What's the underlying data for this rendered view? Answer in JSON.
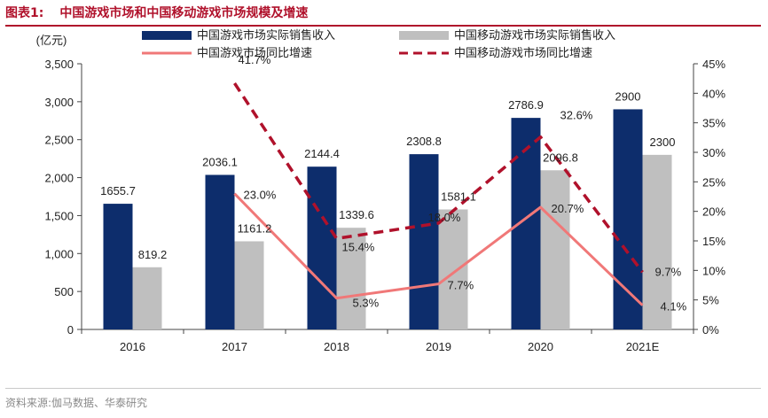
{
  "figure": {
    "label": "图表1:",
    "title": "中国游戏市场和中国移动游戏市场规模及增速",
    "source": "资料来源:伽马数据、华泰研究"
  },
  "chart_data": {
    "type": "bar",
    "categories": [
      "2016",
      "2017",
      "2018",
      "2019",
      "2020",
      "2021E"
    ],
    "ylabel": "(亿元)",
    "ylim": [
      0,
      3500
    ],
    "yticks": [
      0,
      500,
      1000,
      1500,
      2000,
      2500,
      3000,
      3500
    ],
    "y2lim": [
      0,
      45
    ],
    "y2ticks": [
      0,
      5,
      10,
      15,
      20,
      25,
      30,
      35,
      40,
      45
    ],
    "legend_position": "top",
    "grid": false,
    "series": [
      {
        "name": "中国游戏市场实际销售收入",
        "kind": "bar",
        "axis": "left",
        "color": "#0d2d6c",
        "values": [
          1655.7,
          2036.1,
          2144.4,
          2308.8,
          2786.9,
          2900
        ],
        "labels": [
          "1655.7",
          "2036.1",
          "2144.4",
          "2308.8",
          "2786.9",
          "2900"
        ]
      },
      {
        "name": "中国移动游戏市场实际销售收入",
        "kind": "bar",
        "axis": "left",
        "color": "#bfbfbf",
        "values": [
          819.2,
          1161.2,
          1339.6,
          1581.1,
          2096.8,
          2300
        ],
        "labels": [
          "819.2",
          "1161.2",
          "1339.6",
          "1581.1",
          "2096.8",
          "2300"
        ]
      },
      {
        "name": "中国游戏市场同比增速",
        "kind": "line",
        "axis": "right",
        "color": "#f07878",
        "dash": false,
        "values": [
          null,
          23.0,
          5.3,
          7.7,
          20.7,
          4.1
        ],
        "labels": [
          "",
          "23.0%",
          "5.3%",
          "7.7%",
          "20.7%",
          "4.1%"
        ]
      },
      {
        "name": "中国移动游戏市场同比增速",
        "kind": "line",
        "axis": "right",
        "color": "#b0112b",
        "dash": true,
        "values": [
          null,
          41.7,
          15.4,
          18.0,
          32.6,
          9.7
        ],
        "labels": [
          "",
          "41.7%",
          "15.4%",
          "18.0%",
          "32.6%",
          "9.7%"
        ]
      }
    ]
  }
}
